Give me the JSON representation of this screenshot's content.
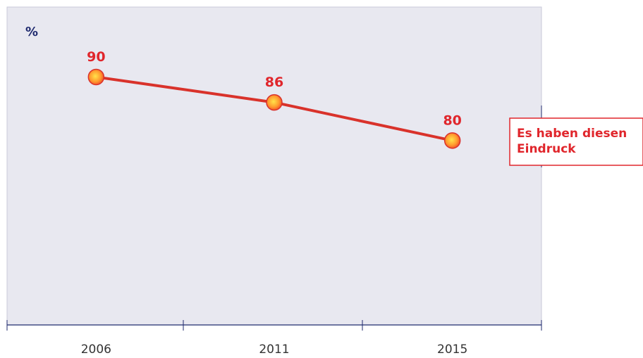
{
  "chart_data": {
    "type": "line",
    "y_label": "%",
    "categories": [
      "2006",
      "2011",
      "2015"
    ],
    "series": [
      {
        "name": "Es haben diesen Eindruck",
        "color": "#d9322b",
        "values": [
          90,
          86,
          80
        ]
      }
    ],
    "ylim": [
      51,
      101
    ]
  }
}
